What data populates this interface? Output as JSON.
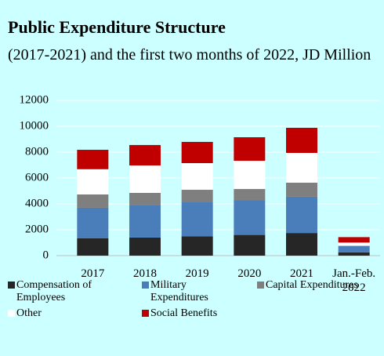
{
  "chart_data": {
    "type": "stacked_bar",
    "title": "Public Expenditure Structure",
    "subtitle": "(2017-2021) and the first two months of 2022, JD Million",
    "categories": [
      "2017",
      "2018",
      "2019",
      "2020",
      "2021",
      "Jan.-Feb. 2022"
    ],
    "series": [
      {
        "name": "Compensation of Employees",
        "color": "#262626",
        "values": [
          1350,
          1400,
          1500,
          1600,
          1750,
          250
        ]
      },
      {
        "name": "Military Expenditures",
        "color": "#4a7ebb",
        "values": [
          2350,
          2480,
          2620,
          2700,
          2800,
          480
        ]
      },
      {
        "name": "Capital Expenditures",
        "color": "#7f7f7f",
        "values": [
          1030,
          970,
          970,
          850,
          1090,
          30
        ]
      },
      {
        "name": "Other",
        "color": "#ffffff",
        "values": [
          1950,
          2120,
          2060,
          2180,
          2300,
          250
        ]
      },
      {
        "name": "Social Benefits",
        "color": "#c00000",
        "values": [
          1500,
          1580,
          1640,
          1820,
          1940,
          420
        ]
      }
    ],
    "ylim": [
      0,
      12000
    ],
    "yticks": [
      0,
      2000,
      4000,
      6000,
      8000,
      10000,
      12000
    ],
    "grid": true
  }
}
